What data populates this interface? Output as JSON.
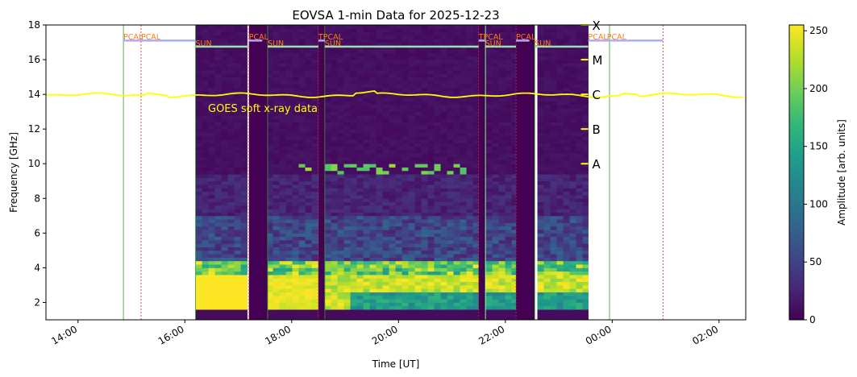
{
  "chart_data": {
    "type": "heatmap",
    "title": "EOVSA 1-min Data for 2025-12-23",
    "xlabel": "Time [UT]",
    "ylabel": "Frequency [GHz]",
    "xlim_hours": [
      13.4,
      26.5
    ],
    "ylim": [
      1,
      18
    ],
    "x_ticks": [
      {
        "hour": 14,
        "label": "14:00"
      },
      {
        "hour": 16,
        "label": "16:00"
      },
      {
        "hour": 18,
        "label": "18:00"
      },
      {
        "hour": 20,
        "label": "20:00"
      },
      {
        "hour": 22,
        "label": "22:00"
      },
      {
        "hour": 24,
        "label": "00:00"
      },
      {
        "hour": 26,
        "label": "02:00"
      }
    ],
    "y_ticks": [
      2,
      4,
      6,
      8,
      10,
      12,
      14,
      16,
      18
    ],
    "colorbar": {
      "label": "Amplitude [arb. units]",
      "range": [
        0,
        255
      ],
      "ticks": [
        0,
        50,
        100,
        150,
        200,
        250
      ],
      "colormap": [
        "#440154",
        "#482878",
        "#3e4989",
        "#31688e",
        "#26828e",
        "#1f9e89",
        "#35b779",
        "#6ece58",
        "#b5de2b",
        "#fde725"
      ]
    },
    "data_window_hours": [
      16.2,
      23.55
    ],
    "gaps_hours": [
      [
        17.2,
        17.55
      ],
      [
        18.5,
        18.62
      ],
      [
        21.5,
        21.62
      ],
      [
        22.2,
        22.55
      ]
    ],
    "goes": {
      "label": "GOES soft x-ray data",
      "color": "#ffff00",
      "level": 14.0,
      "class_ticks": [
        {
          "label": "X",
          "freq": 18.0
        },
        {
          "label": "M",
          "freq": 16.0
        },
        {
          "label": "C",
          "freq": 14.0
        },
        {
          "label": "B",
          "freq": 12.0
        },
        {
          "label": "A",
          "freq": 10.0
        }
      ]
    },
    "scan_labels": [
      {
        "label": "PCAL",
        "hour": 14.85,
        "row": "top",
        "color": "#ff7f0e"
      },
      {
        "label": "PCAL",
        "hour": 15.18,
        "row": "top",
        "color": "#ff7f0e"
      },
      {
        "label": "SUN",
        "hour": 16.2,
        "row": "bottom",
        "color": "#ff7f0e"
      },
      {
        "label": "PCAL",
        "hour": 17.2,
        "row": "top",
        "color": "#ff7f0e"
      },
      {
        "label": "SUN",
        "hour": 17.55,
        "row": "bottom",
        "color": "#ff7f0e"
      },
      {
        "label": "TPCAL",
        "hour": 18.5,
        "row": "top",
        "color": "#ff7f0e"
      },
      {
        "label": "SUN",
        "hour": 18.62,
        "row": "bottom",
        "color": "#ff7f0e"
      },
      {
        "label": "TPCAL",
        "hour": 21.5,
        "row": "top",
        "color": "#ff7f0e"
      },
      {
        "label": "SUN",
        "hour": 21.62,
        "row": "bottom",
        "color": "#ff7f0e"
      },
      {
        "label": "PCAL",
        "hour": 22.2,
        "row": "top",
        "color": "#ff7f0e"
      },
      {
        "label": "SUN",
        "hour": 22.55,
        "row": "bottom",
        "color": "#ff7f0e"
      },
      {
        "label": "PCAL",
        "hour": 23.55,
        "row": "top",
        "color": "#ff7f0e"
      },
      {
        "label": "PCAL",
        "hour": 23.9,
        "row": "top",
        "color": "#ff7f0e"
      }
    ],
    "scan_bars": [
      {
        "start": 14.85,
        "end": 16.2,
        "freq": 17.1,
        "color": "#aaaaff"
      },
      {
        "start": 16.2,
        "end": 17.2,
        "freq": 16.75,
        "color": "#98e0b0"
      },
      {
        "start": 17.2,
        "end": 17.45,
        "freq": 17.1,
        "color": "#aaaaff"
      },
      {
        "start": 17.55,
        "end": 18.5,
        "freq": 16.75,
        "color": "#98e0b0"
      },
      {
        "start": 18.5,
        "end": 18.62,
        "freq": 17.1,
        "color": "#aaaaff"
      },
      {
        "start": 18.62,
        "end": 21.5,
        "freq": 16.75,
        "color": "#98e0b0"
      },
      {
        "start": 21.5,
        "end": 21.62,
        "freq": 17.1,
        "color": "#aaaaff"
      },
      {
        "start": 21.62,
        "end": 22.2,
        "freq": 16.75,
        "color": "#98e0b0"
      },
      {
        "start": 22.2,
        "end": 22.45,
        "freq": 17.1,
        "color": "#aaaaff"
      },
      {
        "start": 22.55,
        "end": 23.55,
        "freq": 16.75,
        "color": "#98e0b0"
      },
      {
        "start": 23.55,
        "end": 24.95,
        "freq": 17.1,
        "color": "#aaaaff"
      }
    ],
    "marker_lines": [
      {
        "hour": 14.85,
        "color": "#2ca02c",
        "style": "solid"
      },
      {
        "hour": 15.18,
        "color": "#d62728",
        "style": "dashed"
      },
      {
        "hour": 16.2,
        "color": "#2ca02c",
        "style": "solid"
      },
      {
        "hour": 17.2,
        "color": "#d62728",
        "style": "dashed"
      },
      {
        "hour": 17.55,
        "color": "#2ca02c",
        "style": "solid"
      },
      {
        "hour": 18.5,
        "color": "#d62728",
        "style": "dashed"
      },
      {
        "hour": 18.62,
        "color": "#2ca02c",
        "style": "solid"
      },
      {
        "hour": 21.5,
        "color": "#d62728",
        "style": "dashed"
      },
      {
        "hour": 21.62,
        "color": "#2ca02c",
        "style": "solid"
      },
      {
        "hour": 22.2,
        "color": "#d62728",
        "style": "dashed"
      },
      {
        "hour": 22.55,
        "color": "#2ca02c",
        "style": "solid"
      },
      {
        "hour": 23.95,
        "color": "#2ca02c",
        "style": "solid"
      },
      {
        "hour": 24.95,
        "color": "#d62728",
        "style": "dashed"
      }
    ]
  }
}
